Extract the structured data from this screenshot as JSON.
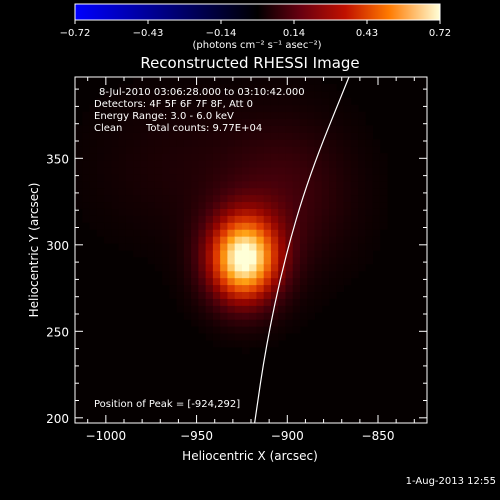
{
  "chart_data": {
    "type": "heatmap",
    "title": "Reconstructed RHESSI Image",
    "xlabel": "Heliocentric X (arcsec)",
    "ylabel": "Heliocentric Y (arcsec)",
    "xlim": [
      -1017,
      -823
    ],
    "ylim": [
      197,
      397
    ],
    "xticks": [
      -1000,
      -950,
      -900,
      -850
    ],
    "yticks": [
      200,
      250,
      300,
      350
    ],
    "xtick_labels": [
      "−1000",
      "−950",
      "−900",
      "−850"
    ],
    "ytick_labels": [
      "200",
      "250",
      "300",
      "350"
    ],
    "colorbar": {
      "min": -0.72,
      "max": 0.72,
      "tick_labels": [
        "−0.72",
        "−0.43",
        "−0.14",
        "0.14",
        "0.43",
        "0.72"
      ],
      "units_text": "(photons cm⁻² s⁻¹ asec⁻²)"
    },
    "sources": [
      {
        "x": -924,
        "y": 292,
        "sigma_x": 14,
        "sigma_y": 18,
        "peak": 0.72
      },
      {
        "x": -900,
        "y": 330,
        "sigma_x": 25,
        "sigma_y": 30,
        "peak": 0.12
      },
      {
        "x": -960,
        "y": 345,
        "sigma_x": 35,
        "sigma_y": 30,
        "peak": 0.05
      }
    ],
    "limb_curve": [
      [
        -918,
        197
      ],
      [
        -912,
        240
      ],
      [
        -902,
        290
      ],
      [
        -888,
        340
      ],
      [
        -866,
        397
      ]
    ]
  },
  "annotations": {
    "time_range": "8-Jul-2010 03:06:28.000 to 03:10:42.000",
    "detectors": "Detectors: 4F 5F 6F 7F 8F, Att 0",
    "energy_range": "Energy Range: 3.0 - 6.0 keV",
    "clean_label": "Clean",
    "total_counts": "Total counts: 9.77E+04",
    "peak_position": "Position of Peak = [-924,292]"
  },
  "footer": {
    "timestamp": "1-Aug-2013 12:55"
  },
  "colors": {
    "background": "#000000",
    "foreground": "#ffffff",
    "limb": "#ffffff"
  }
}
